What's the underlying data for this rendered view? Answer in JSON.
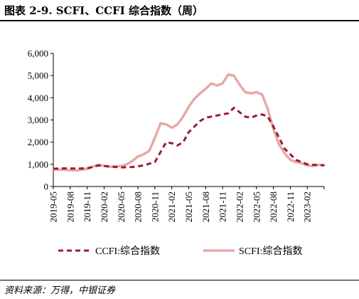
{
  "header": {
    "title": "图表 2-9. SCFI、CCFI 综合指数（周）"
  },
  "footer": {
    "source": "资料来源：万得，中银证券"
  },
  "chart_data": {
    "type": "line",
    "title": "图表 2-9. SCFI、CCFI 综合指数（周）",
    "xlabel": "",
    "ylabel": "",
    "ylim": [
      0,
      6000
    ],
    "yticks": [
      0,
      1000,
      2000,
      3000,
      4000,
      5000,
      6000
    ],
    "ytick_labels": [
      "0",
      "1,000",
      "2,000",
      "3,000",
      "4,000",
      "5,000",
      "6,000"
    ],
    "xlim": [
      "2019-05",
      "2023-05"
    ],
    "xtick_labels": [
      "2019-05",
      "2019-08",
      "2019-11",
      "2020-02",
      "2020-05",
      "2020-08",
      "2020-11",
      "2021-02",
      "2021-05",
      "2021-08",
      "2021-11",
      "2022-02",
      "2022-05",
      "2022-08",
      "2022-11",
      "2023-02"
    ],
    "grid": false,
    "legend": "bottom",
    "series": [
      {
        "name": "CCFI:综合指数",
        "color": "#9b1b30",
        "style": "dashed",
        "x": [
          "2019-05",
          "2019-07",
          "2019-09",
          "2019-11",
          "2020-01",
          "2020-03",
          "2020-05",
          "2020-07",
          "2020-09",
          "2020-11",
          "2020-12",
          "2021-01",
          "2021-02",
          "2021-03",
          "2021-04",
          "2021-05",
          "2021-06",
          "2021-07",
          "2021-08",
          "2021-09",
          "2021-10",
          "2021-11",
          "2021-12",
          "2022-01",
          "2022-02",
          "2022-03",
          "2022-04",
          "2022-05",
          "2022-06",
          "2022-07",
          "2022-08",
          "2022-09",
          "2022-10",
          "2022-11",
          "2022-12",
          "2023-01",
          "2023-02",
          "2023-03",
          "2023-04",
          "2023-05"
        ],
        "y": [
          800,
          820,
          810,
          820,
          950,
          900,
          860,
          880,
          950,
          1100,
          1550,
          2000,
          1950,
          1850,
          2000,
          2450,
          2700,
          2950,
          3100,
          3150,
          3200,
          3250,
          3300,
          3550,
          3350,
          3150,
          3100,
          3200,
          3250,
          3150,
          2700,
          2200,
          1700,
          1450,
          1200,
          1100,
          1000,
          980,
          970,
          950
        ]
      },
      {
        "name": "SCFI:综合指数",
        "color": "#e8a8a8",
        "style": "solid",
        "x": [
          "2019-05",
          "2019-07",
          "2019-09",
          "2019-11",
          "2020-01",
          "2020-03",
          "2020-05",
          "2020-06",
          "2020-07",
          "2020-08",
          "2020-09",
          "2020-10",
          "2020-11",
          "2020-12",
          "2021-01",
          "2021-02",
          "2021-03",
          "2021-04",
          "2021-05",
          "2021-06",
          "2021-07",
          "2021-08",
          "2021-09",
          "2021-10",
          "2021-11",
          "2021-12",
          "2022-01",
          "2022-02",
          "2022-03",
          "2022-04",
          "2022-05",
          "2022-06",
          "2022-07",
          "2022-08",
          "2022-09",
          "2022-10",
          "2022-11",
          "2022-12",
          "2023-01",
          "2023-02",
          "2023-03",
          "2023-04",
          "2023-05"
        ],
        "y": [
          780,
          750,
          720,
          800,
          980,
          890,
          920,
          1000,
          1150,
          1350,
          1450,
          1600,
          2200,
          2850,
          2800,
          2650,
          2800,
          3150,
          3600,
          3950,
          4200,
          4400,
          4650,
          4550,
          4650,
          5050,
          5000,
          4600,
          4250,
          4200,
          4250,
          4150,
          3500,
          2600,
          1900,
          1500,
          1200,
          1100,
          1050,
          950,
          920,
          980,
          960
        ]
      }
    ]
  }
}
